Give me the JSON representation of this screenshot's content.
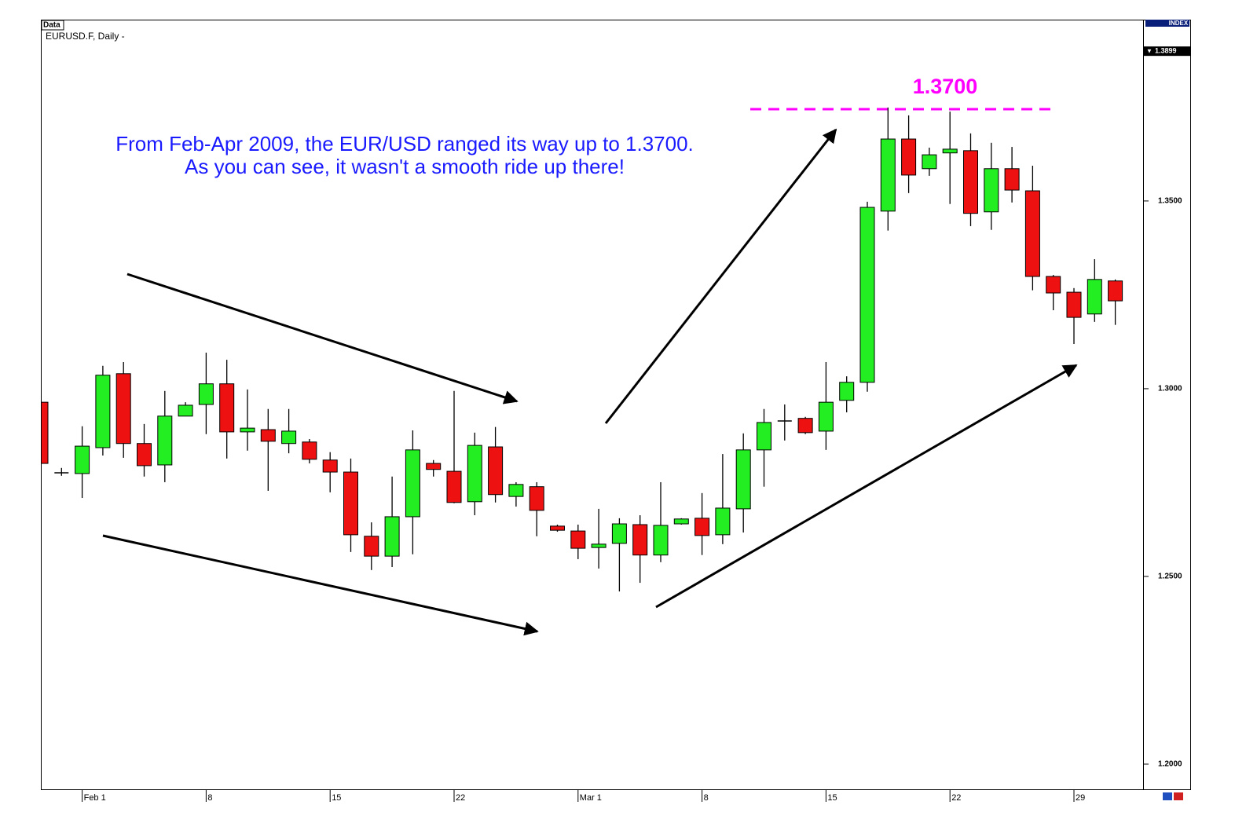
{
  "chart_data": {
    "type": "candlestick",
    "data_tag": "Data",
    "title": "EURUSD.F, Daily -",
    "axis_title": "INDEX",
    "annotations": [
      "From Feb-Apr 2009, the EUR/USD ranged its way up to 1.3700.",
      "As you can see, it wasn't a smooth ride up there!"
    ],
    "level_label": "1.3700",
    "level_color": "#ff00ff",
    "annotation_color": "#1a1aff",
    "last_price": {
      "value": 1.3899,
      "label": "1.3899"
    },
    "up_color": "#22ee22",
    "down_color": "#ee1111",
    "categories": [
      null,
      null,
      "Feb 1",
      null,
      null,
      null,
      null,
      null,
      "8",
      null,
      null,
      null,
      null,
      null,
      "15",
      null,
      null,
      null,
      null,
      null,
      "22",
      null,
      null,
      null,
      null,
      null,
      "Mar 1",
      null,
      null,
      null,
      null,
      null,
      "8",
      null,
      null,
      null,
      null,
      null,
      "15",
      null,
      null,
      null,
      null,
      null,
      "22",
      null,
      null,
      null,
      null,
      null,
      "29",
      null,
      null
    ],
    "open": [
      1.2964,
      1.2776,
      1.2774,
      1.2843,
      1.304,
      1.2854,
      1.2797,
      1.2927,
      1.2958,
      1.3013,
      1.2885,
      1.2891,
      1.2854,
      1.2858,
      1.281,
      1.2778,
      1.2607,
      1.2554,
      1.2659,
      1.2801,
      1.278,
      1.2699,
      1.2845,
      1.2713,
      1.2739,
      1.2634,
      1.2621,
      1.2577,
      1.2588,
      1.2638,
      1.2557,
      1.264,
      1.2655,
      1.2611,
      1.268,
      1.2837,
      1.2914,
      1.2921,
      1.2887,
      1.2969,
      1.3017,
      1.3473,
      1.3665,
      1.3586,
      1.3628,
      1.3634,
      1.3471,
      1.3586,
      1.3527,
      1.3299,
      1.3257,
      1.3199,
      1.3287
    ],
    "high": [
      1.2964,
      1.2789,
      1.29,
      1.3061,
      1.3071,
      1.2906,
      1.2994,
      1.2964,
      1.3096,
      1.3077,
      1.2998,
      1.2946,
      1.2946,
      1.2866,
      1.2831,
      1.2814,
      1.2644,
      1.2766,
      1.2889,
      1.281,
      1.2994,
      1.2883,
      1.2898,
      1.2751,
      1.2751,
      1.2638,
      1.2638,
      1.268,
      1.2655,
      1.2663,
      1.2751,
      1.2655,
      1.2722,
      1.2826,
      1.2881,
      1.2946,
      1.2958,
      1.2925,
      1.3071,
      1.3033,
      1.3498,
      1.3749,
      1.3728,
      1.3642,
      1.3738,
      1.368,
      1.3655,
      1.3644,
      1.3594,
      1.3303,
      1.3268,
      1.3345,
      1.3291
    ],
    "low": [
      1.2801,
      1.2768,
      1.2709,
      1.2822,
      1.2816,
      1.2766,
      1.2751,
      1.2927,
      1.2879,
      1.2814,
      1.2835,
      1.2728,
      1.2828,
      1.2801,
      1.2724,
      1.2565,
      1.2517,
      1.2525,
      1.2559,
      1.2766,
      1.2695,
      1.2663,
      1.2697,
      1.2686,
      1.2607,
      1.2619,
      1.2546,
      1.2521,
      1.246,
      1.2483,
      1.2538,
      1.2638,
      1.2557,
      1.2586,
      1.2617,
      1.2739,
      1.2862,
      1.2879,
      1.2837,
      1.2937,
      1.2992,
      1.3421,
      1.3521,
      1.3567,
      1.3492,
      1.3433,
      1.3423,
      1.3496,
      1.3262,
      1.3209,
      1.3119,
      1.3178,
      1.317
    ],
    "close": [
      1.2801,
      1.2776,
      1.2847,
      1.3036,
      1.2854,
      1.2795,
      1.2927,
      1.2956,
      1.3013,
      1.2885,
      1.2895,
      1.286,
      1.2887,
      1.2812,
      1.2778,
      1.2611,
      1.2554,
      1.2659,
      1.2837,
      1.2785,
      1.2697,
      1.2849,
      1.2718,
      1.2745,
      1.2676,
      1.2623,
      1.2575,
      1.2586,
      1.264,
      1.2557,
      1.2636,
      1.2653,
      1.2609,
      1.2682,
      1.2837,
      1.291,
      1.2914,
      1.2883,
      1.2964,
      1.3017,
      1.3483,
      1.3665,
      1.3569,
      1.3623,
      1.3638,
      1.3467,
      1.3586,
      1.3529,
      1.3299,
      1.3255,
      1.319,
      1.3291,
      1.3234
    ],
    "ylim": [
      1.1933,
      1.3983
    ],
    "yticks": [
      {
        "value": 1.2,
        "label": "1.2000"
      },
      {
        "value": 1.25,
        "label": "1.2500"
      },
      {
        "value": 1.3,
        "label": "1.3000"
      },
      {
        "value": 1.35,
        "label": "1.3500"
      }
    ]
  }
}
